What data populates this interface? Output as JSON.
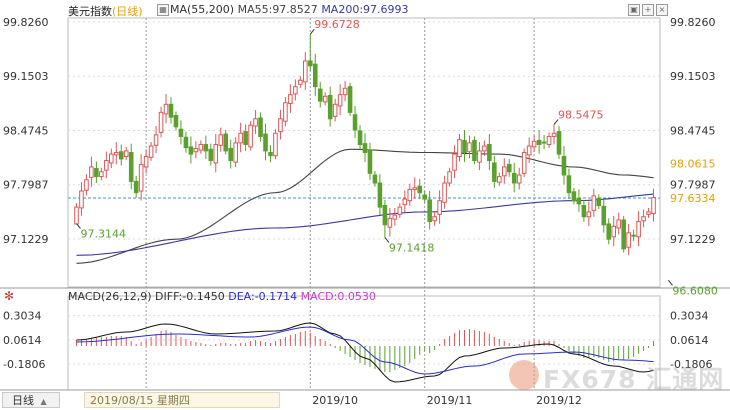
{
  "header": {
    "title": "美元指数",
    "period": "(日线)",
    "ma_label": "MA(55,200)",
    "ma55_label": "MA55:97.8527",
    "ma200_label": "MA200:97.6993"
  },
  "macd_header": {
    "params": "MACD(26,12,9)",
    "diff": "DIFF:-0.1450",
    "dea": "DEA:-0.1714",
    "macd": "MACD:0.0530"
  },
  "footer": {
    "period_tab": "日线",
    "cursor_date": "2019/08/15 星期四"
  },
  "watermark": "FX678 汇通网",
  "colors": {
    "up": "#e05757",
    "down": "#5aa02c",
    "ma55": "#444444",
    "ma200": "#3a3a9e",
    "diff": "#111111",
    "dea": "#2c2cc8",
    "macd_label": "#c83cc8",
    "last_price": "#e8a000",
    "ref_line": "#4a90c8",
    "axis_text": "#333333"
  },
  "chart_data": [
    {
      "type": "candlestick",
      "title": "美元指数(日线)",
      "x_labels": [
        "2019/10",
        "2019/11",
        "2019/12"
      ],
      "x_label_index": [
        47,
        70,
        92
      ],
      "y_ticks": [
        97.1229,
        97.7987,
        98.4745,
        99.1503,
        99.826
      ],
      "ylim": [
        96.55,
        99.85
      ],
      "grid": true,
      "annotations": [
        {
          "label": "99.6728",
          "index": 47,
          "value": 99.6728,
          "kind": "high"
        },
        {
          "label": "97.3144",
          "index": 0,
          "value": 97.3144,
          "kind": "low"
        },
        {
          "label": "97.1418",
          "index": 62,
          "value": 97.1418,
          "kind": "low"
        },
        {
          "label": "98.5475",
          "index": 96,
          "value": 98.5475,
          "kind": "high"
        },
        {
          "label": "96.6080",
          "index": 119,
          "value": 96.608,
          "kind": "low"
        }
      ],
      "price_labels": [
        {
          "label": "98.0615",
          "value": 98.0615,
          "color": "#e8a000"
        },
        {
          "label": "97.6334",
          "value": 97.6334,
          "color": "#e8a000"
        }
      ],
      "reference_line": 97.6334,
      "close": [
        97.52,
        97.72,
        97.86,
        98.02,
        97.9,
        97.96,
        98.1,
        98.18,
        98.2,
        98.12,
        98.22,
        97.84,
        97.7,
        98.05,
        98.15,
        98.28,
        98.42,
        98.7,
        98.8,
        98.64,
        98.52,
        98.4,
        98.26,
        98.18,
        98.25,
        98.3,
        98.22,
        98.1,
        98.3,
        98.42,
        98.22,
        98.1,
        98.32,
        98.44,
        98.3,
        98.54,
        98.62,
        98.4,
        98.22,
        98.16,
        98.44,
        98.62,
        98.82,
        98.92,
        99.02,
        99.1,
        99.34,
        99.28,
        99.02,
        98.84,
        98.9,
        98.62,
        98.8,
        98.92,
        99.0,
        98.7,
        98.48,
        98.3,
        98.2,
        97.94,
        97.82,
        97.52,
        97.3,
        97.38,
        97.42,
        97.52,
        97.62,
        97.74,
        97.76,
        97.7,
        97.62,
        97.34,
        97.4,
        97.6,
        97.82,
        97.96,
        98.18,
        98.36,
        98.2,
        98.32,
        98.1,
        98.22,
        98.28,
        98.1,
        97.84,
        97.9,
        98.02,
        97.96,
        97.82,
        97.92,
        98.2,
        98.28,
        98.34,
        98.3,
        98.32,
        98.4,
        98.44,
        98.18,
        97.92,
        97.7,
        97.6,
        97.56,
        97.4,
        97.46,
        97.66,
        97.54,
        97.3,
        97.12,
        97.28,
        97.36,
        97.0,
        97.2,
        97.16,
        97.34,
        97.4,
        97.46,
        97.64
      ],
      "series": [
        {
          "name": "MA55",
          "values_by_index": {
            "0": 96.82,
            "20": 97.12,
            "40": 97.7,
            "55": 98.24,
            "70": 98.2,
            "85": 98.18,
            "100": 98.02,
            "110": 97.92,
            "122": 97.85
          }
        },
        {
          "name": "MA200",
          "values_by_index": {
            "0": 96.92,
            "40": 97.26,
            "70": 97.46,
            "100": 97.6,
            "122": 97.7
          }
        }
      ]
    },
    {
      "type": "macd",
      "title": "MACD(26,12,9)",
      "y_ticks": [
        0.3034,
        0.0614,
        -0.1806
      ],
      "ylim": [
        -0.42,
        0.48
      ],
      "histogram": [
        0.06,
        0.07,
        0.07,
        0.08,
        0.08,
        0.09,
        0.09,
        0.1,
        0.1,
        0.1,
        0.09,
        0.05,
        0.02,
        0.04,
        0.06,
        0.09,
        0.12,
        0.15,
        0.16,
        0.14,
        0.11,
        0.09,
        0.07,
        0.05,
        0.04,
        0.03,
        0.02,
        0.01,
        0.02,
        0.03,
        0.03,
        0.02,
        0.02,
        0.03,
        0.03,
        0.05,
        0.06,
        0.05,
        0.04,
        0.03,
        0.05,
        0.07,
        0.09,
        0.11,
        0.12,
        0.14,
        0.15,
        0.13,
        0.1,
        0.07,
        0.05,
        0.02,
        -0.02,
        -0.05,
        -0.08,
        -0.11,
        -0.14,
        -0.17,
        -0.19,
        -0.21,
        -0.23,
        -0.25,
        -0.26,
        -0.26,
        -0.24,
        -0.22,
        -0.2,
        -0.17,
        -0.13,
        -0.09,
        -0.05,
        -0.07,
        -0.04,
        0.02,
        0.07,
        0.1,
        0.13,
        0.16,
        0.16,
        0.17,
        0.16,
        0.15,
        0.14,
        0.12,
        0.09,
        0.07,
        0.05,
        0.03,
        0.01,
        0.02,
        0.04,
        0.05,
        0.06,
        0.06,
        0.05,
        0.05,
        0.05,
        0.02,
        -0.02,
        -0.05,
        -0.08,
        -0.1,
        -0.12,
        -0.12,
        -0.11,
        -0.12,
        -0.14,
        -0.16,
        -0.15,
        -0.13,
        -0.14,
        -0.13,
        -0.11,
        -0.08,
        -0.05,
        -0.02,
        0.05
      ],
      "series": [
        {
          "name": "DIFF",
          "values_by_index": {
            "0": 0.06,
            "10": 0.14,
            "18": 0.22,
            "28": 0.12,
            "40": 0.15,
            "47": 0.23,
            "52": 0.12,
            "58": -0.12,
            "64": -0.36,
            "72": -0.3,
            "78": -0.1,
            "86": -0.02,
            "95": 0.02,
            "100": -0.08,
            "108": -0.2,
            "114": -0.26,
            "122": -0.145
          }
        },
        {
          "name": "DEA",
          "values_by_index": {
            "0": 0.04,
            "20": 0.12,
            "35": 0.09,
            "47": 0.19,
            "55": 0.06,
            "62": -0.16,
            "70": -0.28,
            "80": -0.2,
            "90": -0.08,
            "100": -0.06,
            "110": -0.14,
            "122": -0.1714
          }
        }
      ]
    }
  ]
}
